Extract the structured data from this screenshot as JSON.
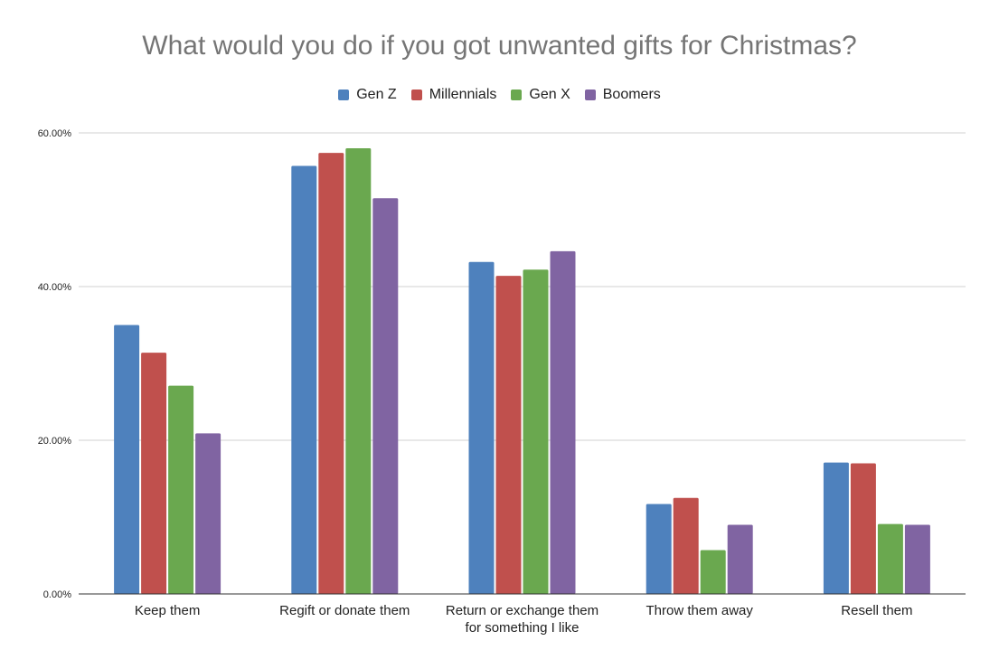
{
  "chart_data": {
    "type": "bar",
    "title": "What would you do if you got unwanted gifts for Christmas?",
    "xlabel": "",
    "ylabel": "",
    "ylim": [
      0,
      60
    ],
    "yticks": [
      "0.00%",
      "20.00%",
      "40.00%",
      "60.00%"
    ],
    "ytick_values": [
      0,
      20,
      40,
      60
    ],
    "gridlines": true,
    "legend_position": "top",
    "categories": [
      [
        "Keep them"
      ],
      [
        "Regift or donate them"
      ],
      [
        "Return or exchange them",
        "for something I like"
      ],
      [
        "Throw them away"
      ],
      [
        "Resell them"
      ]
    ],
    "series": [
      {
        "name": "Gen Z",
        "color": "#4e81bd",
        "values": [
          35.0,
          55.7,
          43.2,
          11.7,
          17.1
        ]
      },
      {
        "name": "Millennials",
        "color": "#c0504d",
        "values": [
          31.4,
          57.4,
          41.4,
          12.5,
          17.0
        ]
      },
      {
        "name": "Gen X",
        "color": "#6aa84f",
        "values": [
          27.1,
          58.0,
          42.2,
          5.7,
          9.1
        ]
      },
      {
        "name": "Boomers",
        "color": "#8064a2",
        "values": [
          20.9,
          51.5,
          44.6,
          9.0,
          9.0
        ]
      }
    ]
  }
}
